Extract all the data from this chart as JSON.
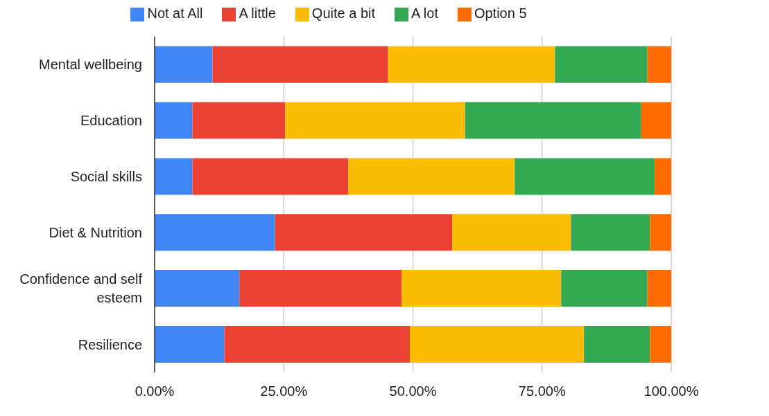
{
  "chart_data": {
    "type": "bar",
    "orientation": "horizontal",
    "stacked": true,
    "categories": [
      "Mental wellbeing",
      "Education",
      "Social skills",
      "Diet & Nutrition",
      "Confidence and self esteem",
      "Resilience"
    ],
    "series": [
      {
        "name": "Not at All",
        "color": "#4285f4",
        "values": [
          11.2,
          7.3,
          7.3,
          23.3,
          16.4,
          13.5
        ]
      },
      {
        "name": "A little",
        "color": "#ea4335",
        "values": [
          34.0,
          18.0,
          30.2,
          34.3,
          31.4,
          35.9
        ]
      },
      {
        "name": "Quite a bit",
        "color": "#fbbc04",
        "values": [
          32.3,
          34.8,
          32.2,
          23.0,
          30.9,
          33.7
        ]
      },
      {
        "name": "A lot",
        "color": "#34a853",
        "values": [
          17.9,
          34.1,
          27.1,
          15.3,
          16.7,
          12.8
        ]
      },
      {
        "name": "Option 5",
        "color": "#ff6d01",
        "values": [
          4.6,
          5.8,
          3.2,
          4.1,
          4.6,
          4.1
        ]
      }
    ],
    "xlim": [
      0,
      100
    ],
    "xticks": [
      {
        "value": 0,
        "label": "0.00%"
      },
      {
        "value": 25,
        "label": "25.00%"
      },
      {
        "value": 50,
        "label": "50.00%"
      },
      {
        "value": 75,
        "label": "75.00%"
      },
      {
        "value": 100,
        "label": "100.00%"
      }
    ],
    "grid": "x",
    "legend": "top"
  }
}
